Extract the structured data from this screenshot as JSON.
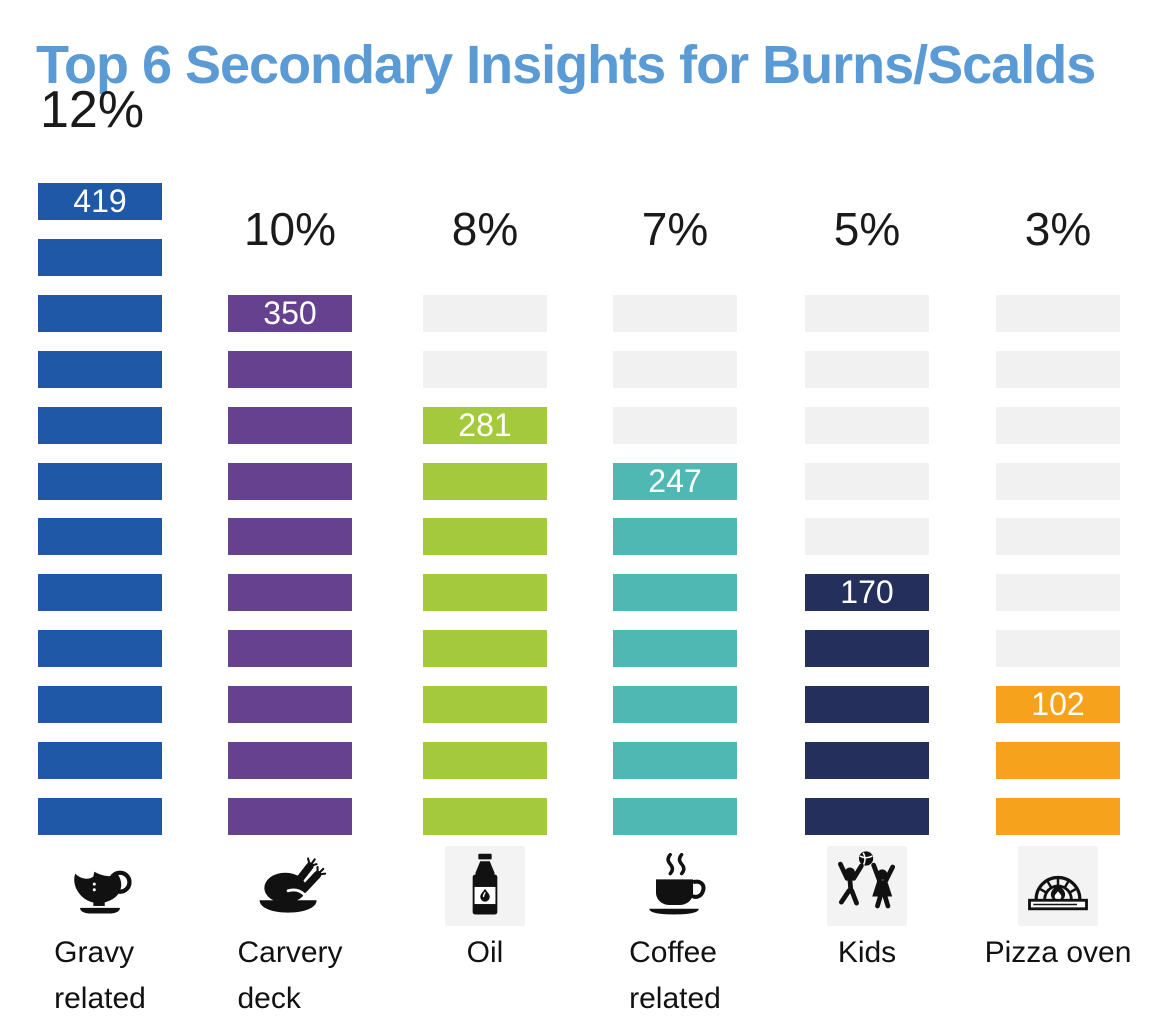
{
  "title": "Top 6 Secondary Insights for Burns/Scalds",
  "colors": {
    "title_blue": "#5B9BD5",
    "track_gray": "#f1f1f1",
    "value_text": "#ffffff",
    "label_text": "#111111",
    "icon_black": "#111111"
  },
  "chart_data": {
    "type": "bar",
    "variant": "segmented-pictogram-columns",
    "title": "Top 6 Secondary Insights for Burns/Scalds",
    "unit_rows_total": 12,
    "categories": [
      "Gravy related",
      "Carvery deck",
      "Oil",
      "Coffee related",
      "Kids",
      "Pizza oven"
    ],
    "series": [
      {
        "label": "Gravy related",
        "label_lines": "Gravy\nrelated",
        "percent": "12%",
        "value": "419",
        "segments": 12,
        "gray_segments": 0,
        "color": "#2058A8",
        "icon": "gravy-boat"
      },
      {
        "label": "Carvery deck",
        "label_lines": "Carvery\ndeck",
        "percent": "10%",
        "value": "350",
        "segments": 10,
        "gray_segments": 0,
        "color": "#66418F",
        "icon": "turkey"
      },
      {
        "label": "Oil",
        "label_lines": "Oil",
        "percent": "8%",
        "value": "281",
        "segments": 8,
        "gray_segments": 2,
        "color": "#A4C93C",
        "icon": "oil-bottle"
      },
      {
        "label": "Coffee related",
        "label_lines": "Coffee\nrelated",
        "percent": "7%",
        "value": "247",
        "segments": 7,
        "gray_segments": 3,
        "color": "#4FB8B2",
        "icon": "coffee-cup"
      },
      {
        "label": "Kids",
        "label_lines": "Kids",
        "percent": "5%",
        "value": "170",
        "segments": 5,
        "gray_segments": 5,
        "color": "#242F5C",
        "icon": "kids"
      },
      {
        "label": "Pizza oven",
        "label_lines": "Pizza oven",
        "percent": "3%",
        "value": "102",
        "segments": 3,
        "gray_segments": 7,
        "color": "#F6A21D",
        "icon": "pizza-oven"
      }
    ]
  }
}
